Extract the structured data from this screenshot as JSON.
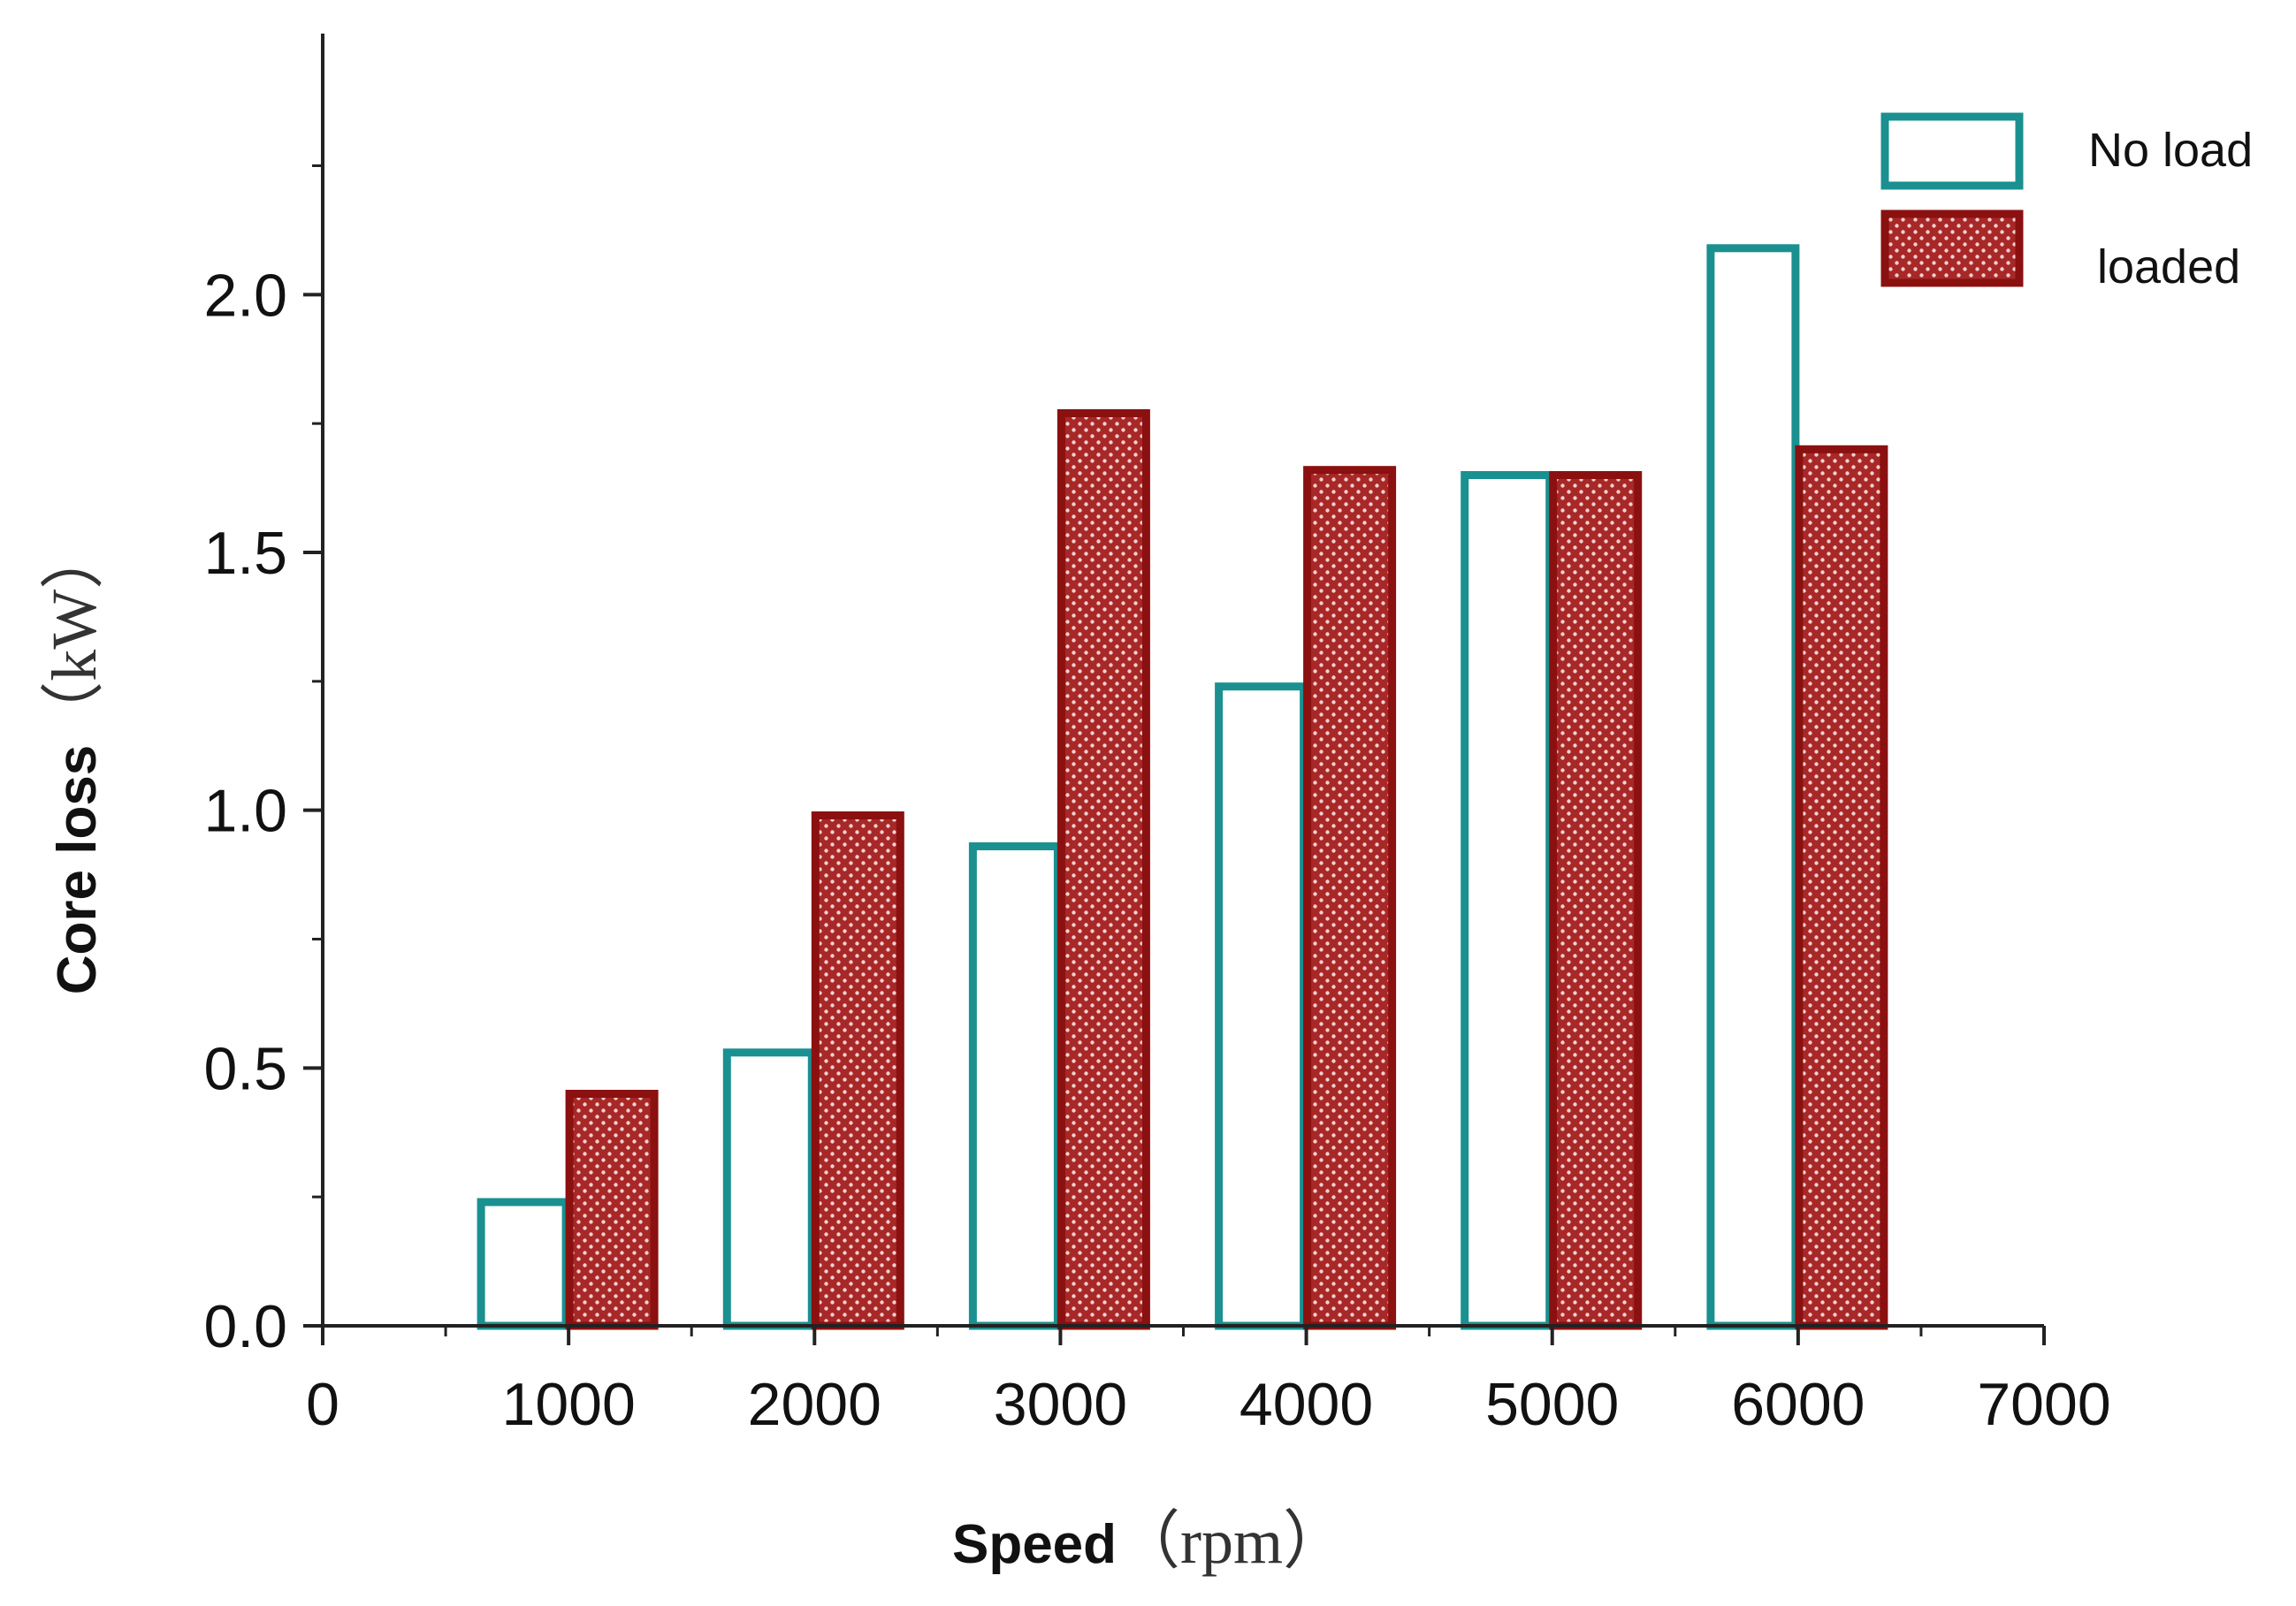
{
  "chart_data": {
    "type": "bar",
    "x": [
      1000,
      2000,
      3000,
      4000,
      5000,
      6000
    ],
    "xlim": [
      0,
      7000
    ],
    "xticks": [
      "0",
      "1000",
      "2000",
      "3000",
      "4000",
      "5000",
      "6000",
      "7000"
    ],
    "ylim": [
      0,
      2.4
    ],
    "yticks": [
      "0.0",
      "0.5",
      "1.0",
      "1.5",
      "2.0"
    ],
    "xlabel": "Speed",
    "xlabel_unit": "（rpm）",
    "ylabel": "Core loss",
    "ylabel_unit": "（kW）",
    "legend_position": "top-right",
    "grid": false,
    "series": [
      {
        "name": "No load",
        "values": [
          0.24,
          0.53,
          0.93,
          1.24,
          1.65,
          2.09
        ],
        "color": "#1a9090",
        "fill": "#ffffff"
      },
      {
        "name": "loaded",
        "values": [
          0.45,
          0.99,
          1.77,
          1.66,
          1.65,
          1.7
        ],
        "color": "#8b1010",
        "fill": "#c04848"
      }
    ]
  }
}
